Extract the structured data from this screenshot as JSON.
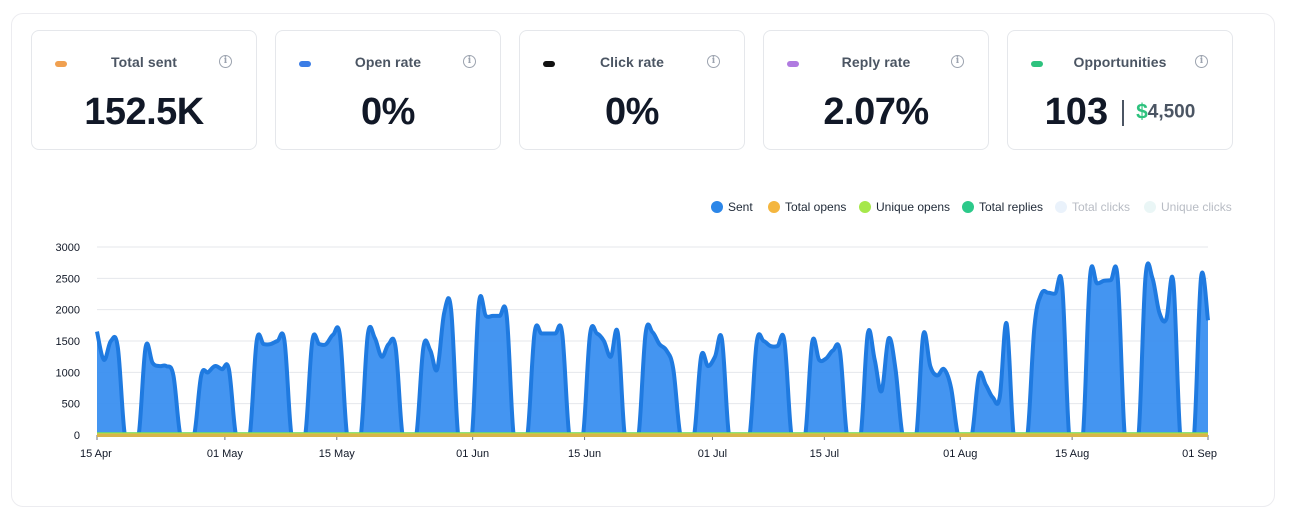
{
  "cards": [
    {
      "label": "Total sent",
      "value": "152.5K",
      "color": "#f0a050"
    },
    {
      "label": "Open rate",
      "value": "0%",
      "color": "#3b7de6"
    },
    {
      "label": "Click rate",
      "value": "0%",
      "color": "#111111"
    },
    {
      "label": "Reply rate",
      "value": "2.07%",
      "color": "#b07ae0"
    },
    {
      "label": "Opportunities",
      "count": "103",
      "dollar": "$",
      "amount": "4,500",
      "color": "#2ec27e"
    }
  ],
  "info_icon": "i",
  "legend": [
    {
      "label": "Sent",
      "color": "#2b86e8",
      "active": true
    },
    {
      "label": "Total opens",
      "color": "#f4b63f",
      "active": true
    },
    {
      "label": "Unique opens",
      "color": "#a6e84b",
      "active": true
    },
    {
      "label": "Total replies",
      "color": "#2cc98a",
      "active": true
    },
    {
      "label": "Total clicks",
      "color": "#eaf2fb",
      "active": false
    },
    {
      "label": "Unique clicks",
      "color": "#eaf6f6",
      "active": false
    }
  ],
  "chart_data": {
    "type": "area",
    "title": "",
    "xlabel": "",
    "ylabel": "",
    "ylim": [
      0,
      3000
    ],
    "yticks": [
      "0",
      "500",
      "1000",
      "1500",
      "2000",
      "2500",
      "3000"
    ],
    "xticks": [
      "15 Apr",
      "01 May",
      "15 May",
      "01 Jun",
      "15 Jun",
      "01 Jul",
      "15 Jul",
      "01 Aug",
      "15 Aug",
      "01 Sep"
    ],
    "x_start": "2024-04-15",
    "x_end": "2024-09-01",
    "grid": true,
    "series": [
      {
        "name": "Sent",
        "color": "#2b86e8",
        "values": [
          1650,
          1200,
          1500,
          1400,
          0,
          0,
          0,
          1400,
          1150,
          1100,
          1100,
          950,
          0,
          0,
          0,
          950,
          1000,
          1100,
          1050,
          1050,
          0,
          0,
          0,
          1500,
          1450,
          1450,
          1500,
          1500,
          0,
          0,
          0,
          1500,
          1450,
          1450,
          1600,
          1580,
          0,
          0,
          0,
          1600,
          1550,
          1250,
          1450,
          1400,
          0,
          0,
          0,
          1400,
          1350,
          1050,
          1950,
          2000,
          0,
          0,
          0,
          2100,
          1900,
          1900,
          1900,
          1900,
          0,
          0,
          0,
          1620,
          1620,
          1620,
          1620,
          1620,
          0,
          0,
          0,
          1600,
          1620,
          1500,
          1250,
          1630,
          0,
          0,
          0,
          1620,
          1640,
          1450,
          1350,
          1050,
          0,
          0,
          0,
          1250,
          1100,
          1250,
          1530,
          0,
          0,
          0,
          0,
          1480,
          1500,
          1420,
          1420,
          1500,
          0,
          0,
          0,
          1480,
          1200,
          1220,
          1350,
          1330,
          0,
          0,
          0,
          1620,
          1200,
          700,
          1540,
          1050,
          0,
          0,
          0,
          1600,
          1100,
          950,
          1050,
          750,
          0,
          0,
          0,
          950,
          800,
          600,
          600,
          1780,
          0,
          0,
          0,
          1720,
          2250,
          2270,
          2260,
          2380,
          0,
          0,
          0,
          2520,
          2420,
          2460,
          2470,
          2500,
          0,
          0,
          0,
          2520,
          2500,
          1950,
          1850,
          2450,
          0,
          0,
          0,
          2520,
          1830
        ]
      },
      {
        "name": "Total opens",
        "color": "#f4b63f",
        "constant": 0
      },
      {
        "name": "Unique opens",
        "color": "#a6e84b",
        "constant": 0
      },
      {
        "name": "Total replies",
        "color": "#2cc98a",
        "constant": 30
      },
      {
        "name": "Total clicks",
        "color": "#eaf2fb",
        "constant": 0
      },
      {
        "name": "Unique clicks",
        "color": "#eaf6f6",
        "constant": 0
      }
    ]
  }
}
